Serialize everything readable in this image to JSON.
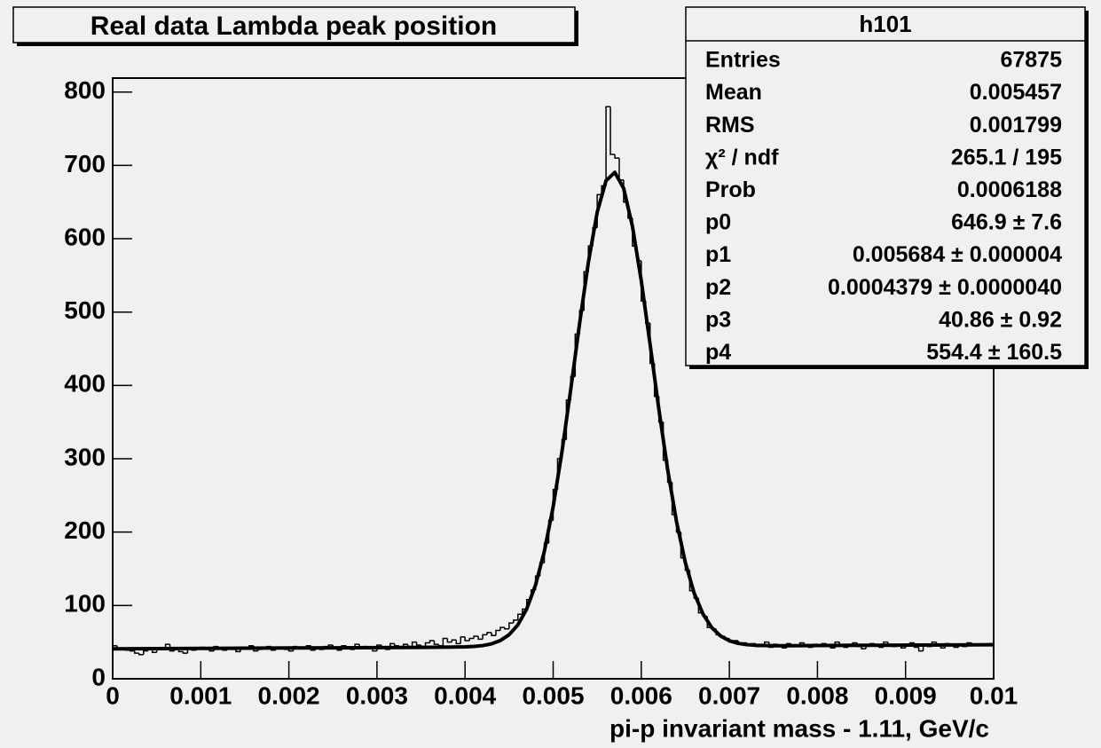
{
  "chart_data": {
    "type": "histogram",
    "title": "Real data Lambda peak position",
    "x_label": "pi-p invariant mass - 1.11, GeV/c",
    "color": "#000000",
    "xlim": [
      0,
      0.01
    ],
    "ylim": [
      0,
      819
    ],
    "xticks": [
      0,
      0.001,
      0.002,
      0.003,
      0.004,
      0.005,
      0.006,
      0.007,
      0.008,
      0.009,
      0.01
    ],
    "yticks": [
      0,
      100,
      200,
      300,
      400,
      500,
      600,
      700,
      800
    ],
    "bins": [
      0,
      5e-05,
      0.0001,
      0.00015,
      0.0002,
      0.00025,
      0.0003,
      0.00035,
      0.0004,
      0.00045,
      0.0005,
      0.00055,
      0.0006,
      0.00065,
      0.0007,
      0.00075,
      0.0008,
      0.00085,
      0.0009,
      0.00095,
      0.001,
      0.00105,
      0.0011,
      0.00115,
      0.0012,
      0.00125,
      0.0013,
      0.00135,
      0.0014,
      0.00145,
      0.0015,
      0.00155,
      0.0016,
      0.00165,
      0.0017,
      0.00175,
      0.0018,
      0.00185,
      0.0019,
      0.00195,
      0.002,
      0.00205,
      0.0021,
      0.00215,
      0.0022,
      0.00225,
      0.0023,
      0.00235,
      0.0024,
      0.00245,
      0.0025,
      0.00255,
      0.0026,
      0.00265,
      0.0027,
      0.00275,
      0.0028,
      0.00285,
      0.0029,
      0.00295,
      0.003,
      0.00305,
      0.0031,
      0.00315,
      0.0032,
      0.00325,
      0.0033,
      0.00335,
      0.0034,
      0.00345,
      0.0035,
      0.00355,
      0.0036,
      0.00365,
      0.0037,
      0.00375,
      0.0038,
      0.00385,
      0.0039,
      0.00395,
      0.004,
      0.00405,
      0.0041,
      0.00415,
      0.0042,
      0.00425,
      0.0043,
      0.00435,
      0.0044,
      0.00445,
      0.0045,
      0.00455,
      0.0046,
      0.00465,
      0.0047,
      0.00475,
      0.0048,
      0.00485,
      0.0049,
      0.00495,
      0.005,
      0.00505,
      0.0051,
      0.00515,
      0.0052,
      0.00525,
      0.0053,
      0.00535,
      0.0054,
      0.00545,
      0.0055,
      0.00555,
      0.0056,
      0.00565,
      0.0057,
      0.00575,
      0.0058,
      0.00585,
      0.0059,
      0.00595,
      0.006,
      0.00605,
      0.0061,
      0.00615,
      0.0062,
      0.00625,
      0.0063,
      0.00635,
      0.0064,
      0.00645,
      0.0065,
      0.00655,
      0.0066,
      0.00665,
      0.0067,
      0.00675,
      0.0068,
      0.00685,
      0.0069,
      0.00695,
      0.007,
      0.00705,
      0.0071,
      0.00715,
      0.0072,
      0.00725,
      0.0073,
      0.00735,
      0.0074,
      0.00745,
      0.0075,
      0.00755,
      0.0076,
      0.00765,
      0.0077,
      0.00775,
      0.0078,
      0.00785,
      0.0079,
      0.00795,
      0.008,
      0.00805,
      0.0081,
      0.00815,
      0.0082,
      0.00825,
      0.0083,
      0.00835,
      0.0084,
      0.00845,
      0.0085,
      0.00855,
      0.0086,
      0.00865,
      0.0087,
      0.00875,
      0.0088,
      0.00885,
      0.0089,
      0.00895,
      0.009,
      0.00905,
      0.0091,
      0.00915,
      0.0092,
      0.00925,
      0.0093,
      0.00935,
      0.0094,
      0.00945,
      0.0095,
      0.00955,
      0.0096,
      0.00965,
      0.0097,
      0.00975,
      0.0098,
      0.00985,
      0.0099,
      0.00995,
      0.01
    ],
    "counts": [
      45,
      40,
      41,
      39,
      38,
      35,
      33,
      38,
      41,
      36,
      42,
      40,
      47,
      38,
      41,
      37,
      35,
      42,
      39,
      41,
      43,
      40,
      38,
      44,
      41,
      39,
      42,
      40,
      37,
      43,
      41,
      45,
      38,
      40,
      42,
      44,
      39,
      41,
      43,
      40,
      38,
      44,
      42,
      41,
      45,
      39,
      43,
      40,
      44,
      46,
      41,
      39,
      45,
      43,
      40,
      47,
      42,
      44,
      41,
      38,
      46,
      43,
      40,
      48,
      45,
      42,
      47,
      44,
      50,
      46,
      43,
      49,
      52,
      47,
      45,
      55,
      50,
      53,
      48,
      57,
      52,
      55,
      58,
      54,
      60,
      63,
      59,
      66,
      70,
      68,
      76,
      80,
      88,
      95,
      108,
      121,
      140,
      158,
      185,
      216,
      258,
      300,
      326,
      380,
      412,
      470,
      502,
      555,
      590,
      615,
      660,
      672,
      780,
      715,
      710,
      680,
      650,
      628,
      590,
      570,
      515,
      485,
      430,
      385,
      350,
      298,
      268,
      224,
      200,
      165,
      148,
      120,
      110,
      90,
      85,
      70,
      68,
      60,
      58,
      55,
      50,
      52,
      47,
      49,
      45,
      48,
      44,
      46,
      50,
      43,
      47,
      45,
      42,
      48,
      46,
      44,
      49,
      45,
      43,
      47,
      45,
      48,
      44,
      42,
      50,
      46,
      43,
      47,
      49,
      44,
      41,
      46,
      48,
      45,
      43,
      50,
      47,
      44,
      46,
      42,
      45,
      49,
      43,
      38,
      47,
      44,
      50,
      46,
      42,
      48,
      45,
      43,
      47,
      44,
      49,
      46,
      45,
      47,
      46,
      48
    ],
    "fit": {
      "type": "line",
      "color": "#000000",
      "x": [
        0,
        0.0005,
        0.001,
        0.0015,
        0.002,
        0.0025,
        0.003,
        0.0035,
        0.004,
        0.0041,
        0.0042,
        0.0043,
        0.0044,
        0.0045,
        0.0046,
        0.0047,
        0.0048,
        0.0049,
        0.005,
        0.0051,
        0.0052,
        0.0053,
        0.0054,
        0.0055,
        0.0056,
        0.0057,
        0.0058,
        0.0059,
        0.006,
        0.0061,
        0.0062,
        0.0063,
        0.0064,
        0.0065,
        0.0066,
        0.0067,
        0.0068,
        0.0069,
        0.007,
        0.0071,
        0.0072,
        0.0073,
        0.0074,
        0.0075,
        0.008,
        0.0085,
        0.009,
        0.0095,
        0.01
      ],
      "values": [
        40.9,
        41.1,
        41.4,
        41.7,
        42.0,
        42.2,
        42.5,
        42.8,
        43.5,
        44.1,
        45.3,
        47.6,
        52.1,
        60.1,
        73.6,
        95.3,
        127.8,
        173.8,
        234.6,
        309.6,
        395.0,
        484.3,
        568.0,
        636.1,
        679.1,
        690.5,
        668.7,
        616.9,
        542.8,
        456.2,
        367.4,
        284.9,
        214.4,
        158.6,
        117.0,
        88.5,
        69.8,
        58.4,
        51.8,
        48.3,
        46.5,
        45.6,
        45.3,
        45.0,
        45.3,
        45.6,
        45.9,
        46.1,
        46.4
      ]
    },
    "stats_box": {
      "title": "h101",
      "rows": [
        [
          "Entries",
          "67875"
        ],
        [
          "Mean",
          "0.005457"
        ],
        [
          "RMS",
          "0.001799"
        ],
        [
          "χ² / ndf",
          "265.1 / 195"
        ],
        [
          "Prob",
          "0.0006188"
        ],
        [
          "p0",
          "646.9 ± 7.6"
        ],
        [
          "p1",
          "0.005684 ± 0.000004"
        ],
        [
          "p2",
          "0.0004379 ± 0.0000040"
        ],
        [
          "p3",
          "40.86 ± 0.92"
        ],
        [
          "p4",
          "554.4 ± 160.5"
        ]
      ]
    }
  }
}
